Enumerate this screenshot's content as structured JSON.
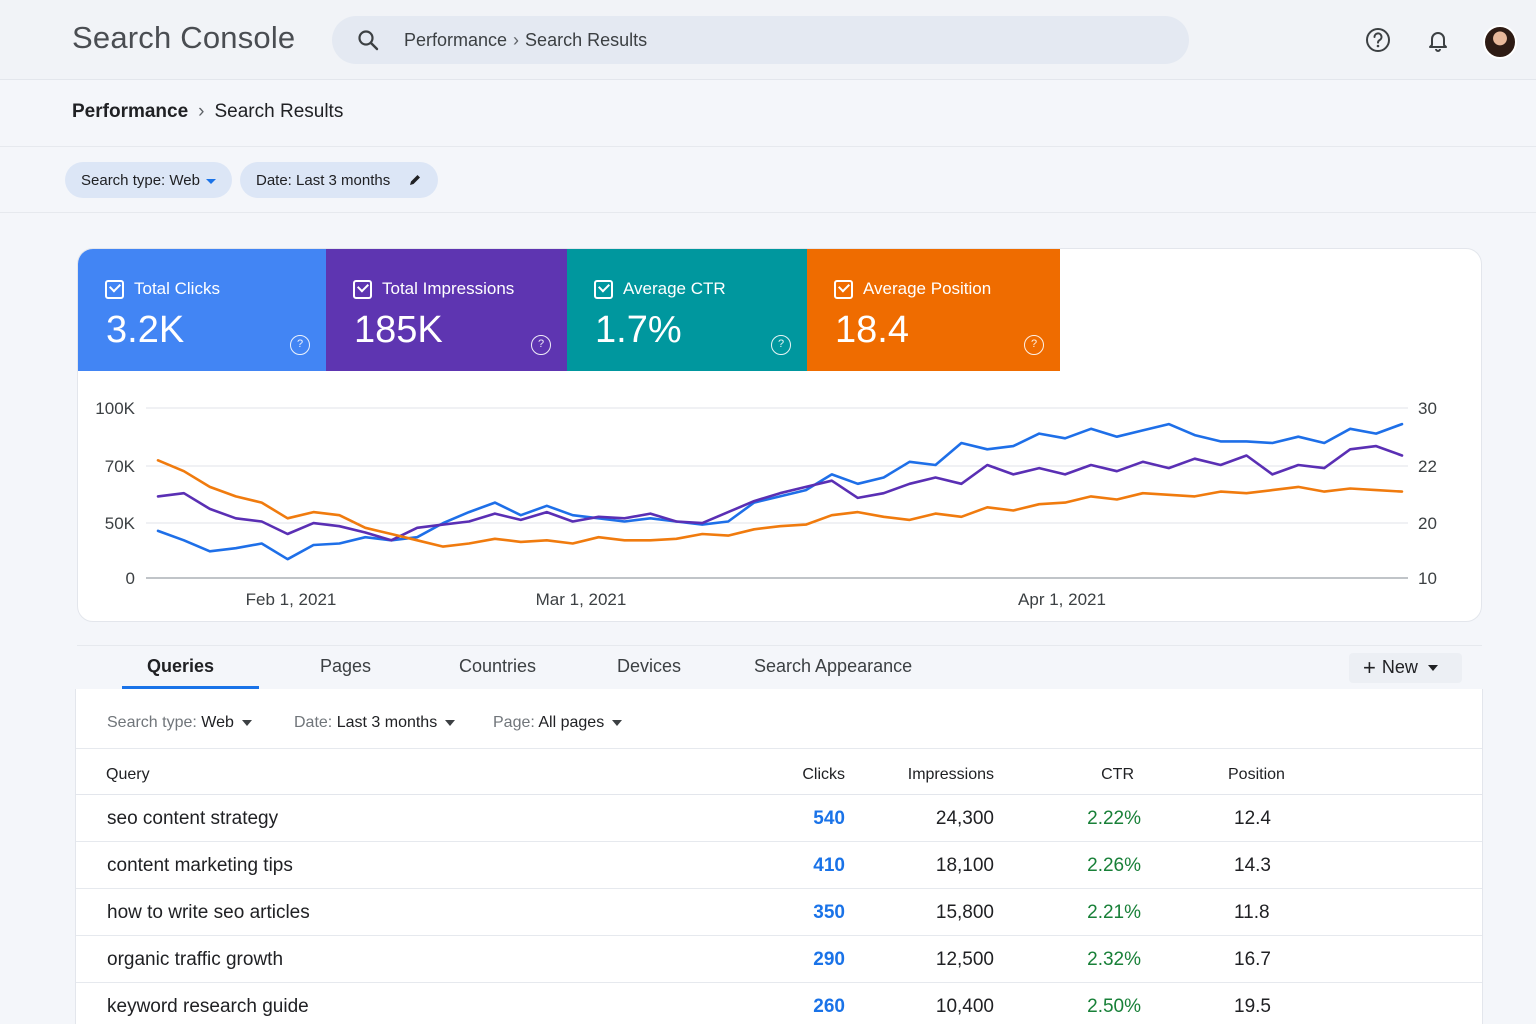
{
  "header": {
    "app_title": "Search Console",
    "search_path": [
      "Performance",
      "Search Results"
    ],
    "icons": [
      "search-icon",
      "help-icon",
      "bell-icon",
      "avatar"
    ]
  },
  "breadcrumb": {
    "parent": "Performance",
    "current": "Search Results"
  },
  "chips": [
    {
      "label": "Search type: Web",
      "icon": "chevron-down-icon"
    },
    {
      "label": "Date: Last 3 months",
      "icon": "pencil-icon"
    }
  ],
  "metrics": [
    {
      "label": "Total Clicks",
      "value": "3.2K",
      "color": "#4285f4"
    },
    {
      "label": "Total Impressions",
      "value": "185K",
      "color": "#5e35b1"
    },
    {
      "label": "Average CTR",
      "value": "1.7%",
      "color": "#00979e"
    },
    {
      "label": "Average Position",
      "value": "18.4",
      "color": "#ef6c00"
    }
  ],
  "chart_data": {
    "type": "line",
    "x_ticks": [
      "Feb 1, 2021",
      "Mar 1, 2021",
      "Apr 1, 2021"
    ],
    "y_left_ticks": [
      "0",
      "50K",
      "70K",
      "100K"
    ],
    "y_right_ticks": [
      "10",
      "20",
      "22",
      "30"
    ],
    "series": [
      {
        "color": "#1e6fe8",
        "values": [
          30,
          24,
          17,
          19,
          22,
          12,
          21,
          22,
          26,
          24,
          26,
          35,
          42,
          48,
          40,
          46,
          40,
          38,
          36,
          38,
          36,
          34,
          36,
          48,
          52,
          56,
          66,
          60,
          64,
          74,
          72,
          86,
          82,
          84,
          92,
          89,
          95,
          90,
          94,
          98,
          91,
          87,
          87,
          86,
          90,
          86,
          95,
          92,
          98
        ]
      },
      {
        "color": "#5a2fb4",
        "values": [
          52,
          54,
          44,
          38,
          36,
          28,
          35,
          33,
          29,
          24,
          32,
          34,
          36,
          41,
          37,
          42,
          36,
          39,
          38,
          41,
          36,
          35,
          42,
          49,
          54,
          58,
          62,
          51,
          54,
          60,
          64,
          60,
          72,
          66,
          70,
          66,
          72,
          68,
          74,
          70,
          76,
          72,
          78,
          66,
          72,
          70,
          82,
          84,
          78
        ]
      },
      {
        "color": "#f07b0e",
        "values": [
          75,
          68,
          58,
          52,
          48,
          38,
          42,
          40,
          32,
          28,
          24,
          20,
          22,
          25,
          23,
          24,
          22,
          26,
          24,
          24,
          25,
          28,
          27,
          31,
          33,
          34,
          40,
          42,
          39,
          37,
          41,
          39,
          45,
          43,
          47,
          48,
          52,
          50,
          54,
          53,
          52,
          55,
          54,
          56,
          58,
          55,
          57,
          56,
          55
        ]
      }
    ]
  },
  "tabs": [
    {
      "label": "Queries",
      "active": true
    },
    {
      "label": "Pages"
    },
    {
      "label": "Countries"
    },
    {
      "label": "Devices"
    },
    {
      "label": "Search Appearance"
    }
  ],
  "new_button": "New",
  "table_filters": [
    {
      "key": "Search type:",
      "value": "Web"
    },
    {
      "key": "Date:",
      "value": "Last 3 months"
    },
    {
      "key": "Page:",
      "value": "All pages"
    }
  ],
  "table": {
    "columns": [
      "Query",
      "Clicks",
      "Impressions",
      "CTR",
      "Position"
    ],
    "rows": [
      {
        "query": "seo content strategy",
        "clicks": "540",
        "impressions": "24,300",
        "ctr": "2.22%",
        "position": "12.4"
      },
      {
        "query": "content marketing tips",
        "clicks": "410",
        "impressions": "18,100",
        "ctr": "2.26%",
        "position": "14.3"
      },
      {
        "query": "how to write seo articles",
        "clicks": "350",
        "impressions": "15,800",
        "ctr": "2.21%",
        "position": "11.8"
      },
      {
        "query": "organic traffic growth",
        "clicks": "290",
        "impressions": "12,500",
        "ctr": "2.32%",
        "position": "16.7"
      },
      {
        "query": "keyword research guide",
        "clicks": "260",
        "impressions": "10,400",
        "ctr": "2.50%",
        "position": "19.5"
      }
    ]
  }
}
